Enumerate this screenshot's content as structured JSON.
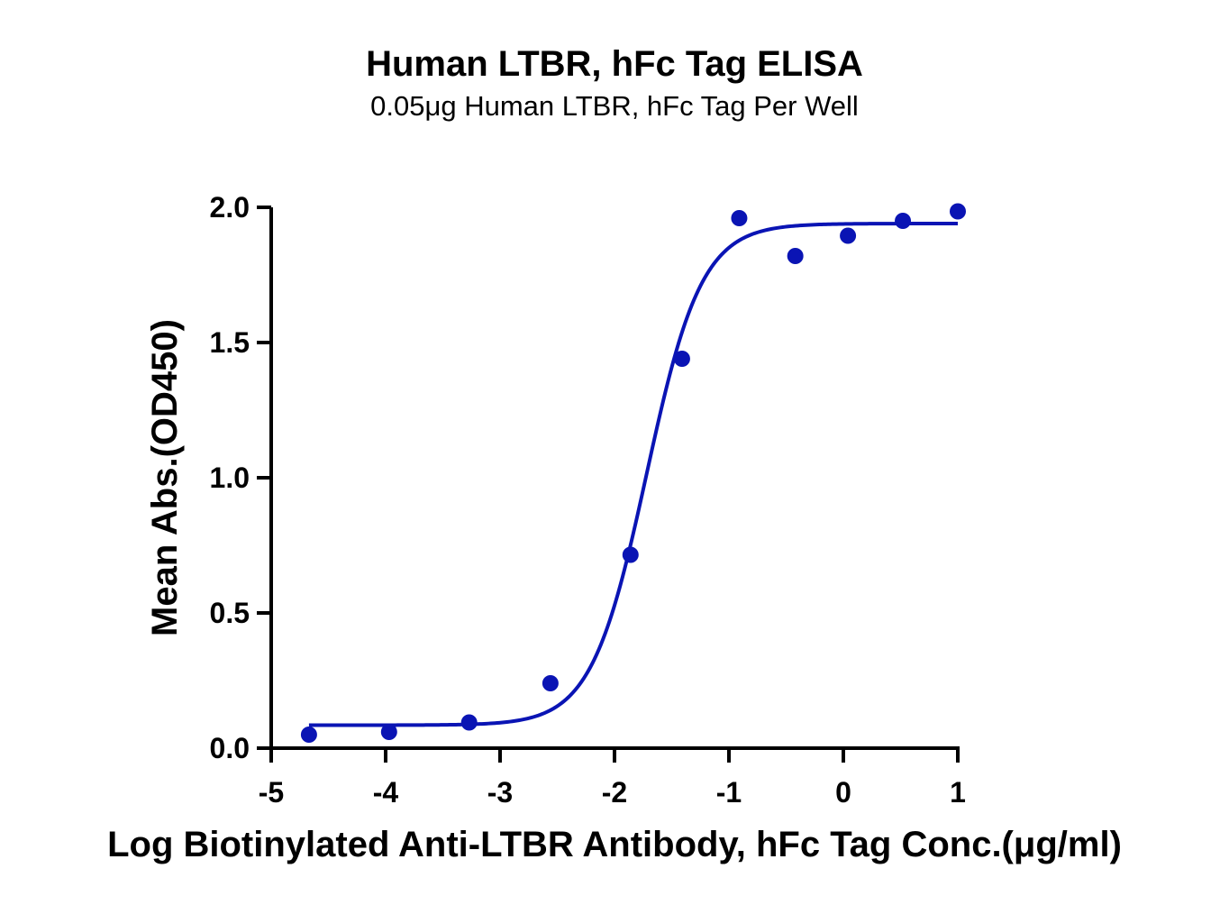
{
  "chart_data": {
    "type": "scatter",
    "title": "Human LTBR, hFc Tag ELISA",
    "subtitle": "0.05μg Human LTBR, hFc Tag Per Well",
    "xlabel": "Log Biotinylated Anti-LTBR Antibody, hFc Tag Conc.(μg/ml)",
    "ylabel": "Mean Abs.(OD450)",
    "xlim": [
      -5,
      1
    ],
    "ylim": [
      0,
      2.0
    ],
    "x_ticks": [
      -5,
      -4,
      -3,
      -2,
      -1,
      0,
      1
    ],
    "x_tick_labels": [
      "-5",
      "-4",
      "-3",
      "-2",
      "-1",
      "0",
      "1"
    ],
    "y_ticks": [
      0.0,
      0.5,
      1.0,
      1.5,
      2.0
    ],
    "y_tick_labels": [
      "0.0",
      "0.5",
      "1.0",
      "1.5",
      "2.0"
    ],
    "grid": false,
    "color": "#0a14b4",
    "series": [
      {
        "x": [
          -4.67,
          -3.97,
          -3.27,
          -2.56,
          -1.86,
          -1.41,
          -0.91,
          -0.42,
          0.04,
          0.52,
          1.0
        ],
        "y": [
          0.05,
          0.06,
          0.095,
          0.24,
          0.715,
          1.44,
          1.96,
          1.82,
          1.895,
          1.95,
          1.985
        ]
      }
    ],
    "fit": {
      "type": "4PL",
      "bottom": 0.085,
      "top": 1.94,
      "log_ec50": -1.72,
      "hill_slope": 1.8,
      "x_range": [
        -4.67,
        1.0
      ]
    }
  }
}
